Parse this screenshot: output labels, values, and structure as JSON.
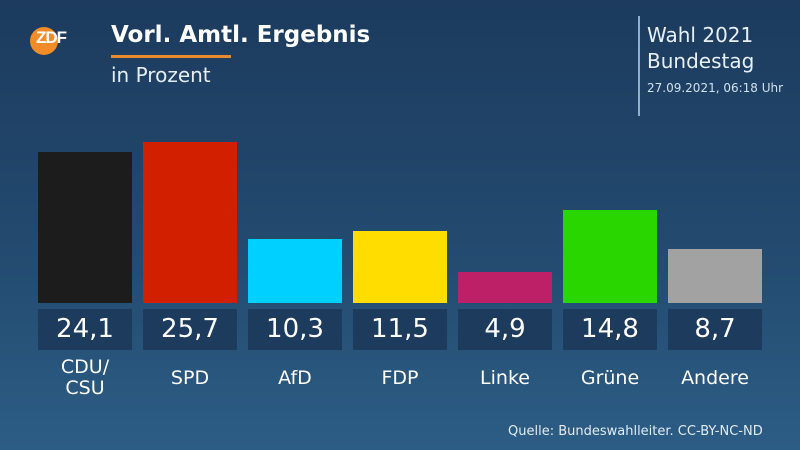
{
  "header": {
    "logo": "ZDF",
    "title": "Vorl. Amtl. Ergebnis",
    "subtitle": "in Prozent",
    "election_line1": "Wahl 2021",
    "election_line2": "Bundestag",
    "timestamp": "27.09.2021, 06:18 Uhr",
    "accent_color": "#e88a2e"
  },
  "footer": {
    "source": "Quelle: Bundeswahlleiter. CC-BY-NC-ND"
  },
  "parties": [
    {
      "name": "CDU/ CSU",
      "line1": "CDU/",
      "line2": "CSU",
      "value": 24.1,
      "value_label": "24,1",
      "color": "#1c1c1c"
    },
    {
      "name": "SPD",
      "line1": "SPD",
      "line2": "",
      "value": 25.7,
      "value_label": "25,7",
      "color": "#d11f00"
    },
    {
      "name": "AfD",
      "line1": "AfD",
      "line2": "",
      "value": 10.3,
      "value_label": "10,3",
      "color": "#00d0ff"
    },
    {
      "name": "FDP",
      "line1": "FDP",
      "line2": "",
      "value": 11.5,
      "value_label": "11,5",
      "color": "#ffdd00"
    },
    {
      "name": "Linke",
      "line1": "Linke",
      "line2": "",
      "value": 4.9,
      "value_label": "4,9",
      "color": "#be2068"
    },
    {
      "name": "Grüne",
      "line1": "Grüne",
      "line2": "",
      "value": 14.8,
      "value_label": "14,8",
      "color": "#2ad600"
    },
    {
      "name": "Andere",
      "line1": "Andere",
      "line2": "",
      "value": 8.7,
      "value_label": "8,7",
      "color": "#a2a2a2"
    }
  ],
  "chart_data": {
    "type": "bar",
    "title": "Vorl. Amtl. Ergebnis",
    "subtitle": "in Prozent",
    "categories": [
      "CDU/CSU",
      "SPD",
      "AfD",
      "FDP",
      "Linke",
      "Grüne",
      "Andere"
    ],
    "values": [
      24.1,
      25.7,
      10.3,
      11.5,
      4.9,
      14.8,
      8.7
    ],
    "colors": [
      "#1c1c1c",
      "#d11f00",
      "#00d0ff",
      "#ffdd00",
      "#be2068",
      "#2ad600",
      "#a2a2a2"
    ],
    "xlabel": "",
    "ylabel": "Prozent",
    "ylim": [
      0,
      26
    ],
    "grid": false,
    "legend": "none",
    "annotations": [
      "Wahl 2021 Bundestag",
      "27.09.2021, 06:18 Uhr",
      "Quelle: Bundeswahlleiter. CC-BY-NC-ND"
    ]
  }
}
